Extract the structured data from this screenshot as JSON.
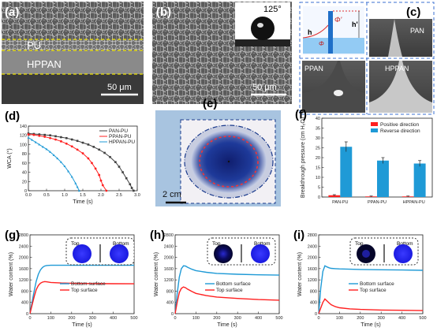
{
  "panels": {
    "a": {
      "label": "(a)",
      "layer_top": "PU",
      "layer_bottom": "HPPAN",
      "scale": "50 μm"
    },
    "b": {
      "label": "(b)",
      "contact_angle": "125°",
      "scale": "50 μm"
    },
    "c": {
      "label": "(c)",
      "schematic_h": "h",
      "schematic_h2": "h'",
      "schematic_phi": "Φ",
      "schematic_phi2": "Φ'",
      "images": [
        "PAN",
        "PPAN",
        "HPPAN"
      ]
    },
    "e": {
      "label": "(e)",
      "scale": "2 cm"
    },
    "g": {
      "label": "(g)",
      "inset_left": "Top",
      "inset_right": "Bottom"
    },
    "h": {
      "label": "(h)",
      "inset_left": "Top",
      "inset_right": "Bottom"
    },
    "i": {
      "label": "(i)",
      "inset_left": "Top",
      "inset_right": "Bottom"
    }
  },
  "colors": {
    "black": "#404040",
    "red": "#ff2020",
    "blue": "#1f9ad6",
    "dark_blue": "#1a3a8c"
  },
  "chart_data": [
    {
      "id": "d",
      "label": "(d)",
      "type": "line",
      "xlabel": "Time (s)",
      "ylabel": "WCA (°)",
      "xlim": [
        0,
        3.0
      ],
      "ylim": [
        0,
        140
      ],
      "xticks": [
        "0.0",
        "0.5",
        "1.0",
        "1.5",
        "2.0",
        "2.5",
        "3.0"
      ],
      "yticks": [
        "0",
        "20",
        "40",
        "60",
        "80",
        "100",
        "120",
        "140"
      ],
      "legend": "top-right",
      "series": [
        {
          "name": "PAN-PU",
          "color": "#404040",
          "marker": "square",
          "x": [
            0,
            0.15,
            0.3,
            0.45,
            0.6,
            0.75,
            0.9,
            1.05,
            1.2,
            1.35,
            1.5,
            1.65,
            1.8,
            1.95,
            2.1,
            2.25,
            2.4,
            2.5,
            2.6,
            2.7,
            2.8,
            2.85,
            2.9
          ],
          "y": [
            124,
            123,
            122,
            121,
            120,
            118,
            116,
            114,
            111,
            108,
            104,
            100,
            95,
            89,
            82,
            73,
            62,
            52,
            40,
            27,
            14,
            6,
            0
          ]
        },
        {
          "name": "PPAN-PU",
          "color": "#ff2020",
          "marker": "circle",
          "x": [
            0,
            0.15,
            0.3,
            0.45,
            0.6,
            0.75,
            0.9,
            1.05,
            1.2,
            1.35,
            1.5,
            1.65,
            1.75,
            1.85,
            1.95,
            2.0,
            2.05,
            2.15
          ],
          "y": [
            122,
            121,
            119,
            117,
            114,
            111,
            107,
            102,
            96,
            89,
            81,
            70,
            60,
            48,
            34,
            22,
            12,
            0
          ]
        },
        {
          "name": "HPPAN-PU",
          "color": "#1f9ad6",
          "marker": "triangle",
          "x": [
            0,
            0.1,
            0.2,
            0.3,
            0.4,
            0.5,
            0.6,
            0.7,
            0.8,
            0.9,
            1.0,
            1.1,
            1.2,
            1.3,
            1.35,
            1.4
          ],
          "y": [
            115,
            110,
            105,
            100,
            95,
            90,
            84,
            77,
            70,
            62,
            53,
            42,
            30,
            16,
            8,
            0
          ]
        }
      ]
    },
    {
      "id": "f",
      "label": "(f)",
      "type": "bar",
      "ylabel": "Breakthrough pressure (cm H₂O)",
      "categories": [
        "PAN-PU",
        "PPAN-PU",
        "HPPAN-PU"
      ],
      "ylim": [
        0,
        40
      ],
      "yticks": [
        "0",
        "5",
        "10",
        "15",
        "20",
        "25",
        "30",
        "35",
        "40"
      ],
      "legend": "top-right",
      "series": [
        {
          "name": "Positive direction",
          "color": "#ff2020",
          "values": [
            0.9,
            0.3,
            0.3
          ],
          "errors": [
            0.3,
            0.2,
            0.2
          ]
        },
        {
          "name": "Reverse direction",
          "color": "#1f9ad6",
          "values": [
            25.5,
            18.5,
            17.0
          ],
          "errors": [
            2.5,
            1.5,
            1.5
          ]
        }
      ]
    },
    {
      "id": "g",
      "label": "(g)",
      "type": "line",
      "xlabel": "Time (s)",
      "ylabel": "Water content (%)",
      "xlim": [
        0,
        500
      ],
      "ylim": [
        0,
        2800
      ],
      "xticks": [
        "0",
        "100",
        "200",
        "300",
        "400",
        "500"
      ],
      "yticks": [
        "0",
        "400",
        "800",
        "1200",
        "1600",
        "2000",
        "2400",
        "2800"
      ],
      "series": [
        {
          "name": "Bottom surface",
          "color": "#1f9ad6",
          "x": [
            0,
            10,
            20,
            30,
            40,
            50,
            60,
            70,
            80,
            100,
            150,
            200,
            300,
            400,
            500
          ],
          "y": [
            0,
            400,
            800,
            1150,
            1400,
            1550,
            1640,
            1690,
            1710,
            1720,
            1720,
            1720,
            1720,
            1720,
            1720
          ]
        },
        {
          "name": "Top surface",
          "color": "#ff2020",
          "x": [
            0,
            10,
            20,
            30,
            40,
            50,
            60,
            70,
            80,
            100,
            150,
            200,
            300,
            400,
            500
          ],
          "y": [
            0,
            300,
            600,
            850,
            1000,
            1080,
            1120,
            1140,
            1130,
            1110,
            1090,
            1080,
            1070,
            1065,
            1060
          ]
        }
      ]
    },
    {
      "id": "h",
      "label": "(h)",
      "type": "line",
      "xlabel": "Time (s)",
      "ylabel": "Water content (%)",
      "xlim": [
        0,
        500
      ],
      "ylim": [
        0,
        2800
      ],
      "xticks": [
        "0",
        "100",
        "200",
        "300",
        "400",
        "500"
      ],
      "yticks": [
        "0",
        "400",
        "800",
        "1200",
        "1600",
        "2000",
        "2400",
        "2800"
      ],
      "series": [
        {
          "name": "Bottom surface",
          "color": "#1f9ad6",
          "x": [
            0,
            10,
            20,
            30,
            40,
            50,
            60,
            80,
            100,
            150,
            200,
            300,
            400,
            500
          ],
          "y": [
            0,
            700,
            1300,
            1600,
            1700,
            1690,
            1650,
            1580,
            1530,
            1470,
            1430,
            1400,
            1380,
            1370
          ]
        },
        {
          "name": "Top surface",
          "color": "#ff2020",
          "x": [
            0,
            10,
            20,
            30,
            40,
            50,
            60,
            80,
            100,
            150,
            200,
            300,
            400,
            500
          ],
          "y": [
            0,
            400,
            750,
            900,
            950,
            920,
            870,
            790,
            720,
            640,
            590,
            540,
            500,
            480
          ]
        }
      ]
    },
    {
      "id": "i",
      "label": "(i)",
      "type": "line",
      "xlabel": "Time (s)",
      "ylabel": "Water content (%)",
      "xlim": [
        0,
        500
      ],
      "ylim": [
        0,
        2800
      ],
      "xticks": [
        "0",
        "100",
        "200",
        "300",
        "400",
        "500"
      ],
      "yticks": [
        "0",
        "400",
        "800",
        "1200",
        "1600",
        "2000",
        "2400",
        "2800"
      ],
      "series": [
        {
          "name": "Bottom surface",
          "color": "#1f9ad6",
          "x": [
            0,
            10,
            20,
            30,
            40,
            50,
            60,
            80,
            100,
            150,
            200,
            300,
            400,
            500
          ],
          "y": [
            0,
            900,
            1500,
            1700,
            1660,
            1630,
            1610,
            1600,
            1590,
            1580,
            1570,
            1560,
            1550,
            1540
          ]
        },
        {
          "name": "Top surface",
          "color": "#ff2020",
          "x": [
            0,
            10,
            20,
            30,
            40,
            50,
            60,
            80,
            100,
            150,
            200,
            300,
            400,
            500
          ],
          "y": [
            0,
            200,
            400,
            520,
            450,
            380,
            320,
            250,
            210,
            170,
            150,
            130,
            120,
            110
          ]
        }
      ]
    }
  ]
}
